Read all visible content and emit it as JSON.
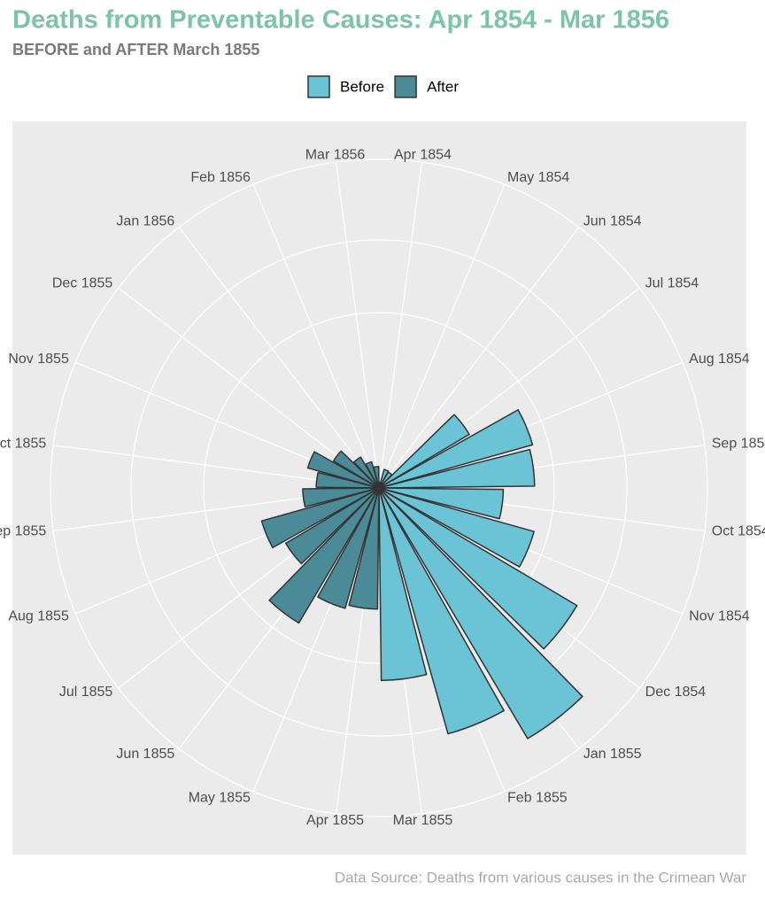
{
  "chart_data": {
    "type": "polar_bar",
    "title": "Deaths from Preventable Causes: Apr 1854 - Mar 1856",
    "subtitle": "BEFORE and AFTER March 1855",
    "caption": "Data Source: Deaths from various causes in the Crimean War",
    "categories": [
      "Apr 1854",
      "May 1854",
      "Jun 1854",
      "Jul 1854",
      "Aug 1854",
      "Sep 1854",
      "Oct 1854",
      "Nov 1854",
      "Dec 1854",
      "Jan 1855",
      "Feb 1855",
      "Mar 1855",
      "Apr 1855",
      "May 1855",
      "Jun 1855",
      "Jul 1855",
      "Aug 1855",
      "Sep 1855",
      "Oct 1855",
      "Nov 1855",
      "Dec 1855",
      "Jan 1856",
      "Feb 1856",
      "Mar 1856"
    ],
    "series": [
      {
        "name": "Before",
        "color": "#6bc3d6",
        "values": [
          1,
          12,
          11,
          359,
          828,
          788,
          503,
          844,
          1725,
          2761,
          2120,
          1205,
          null,
          null,
          null,
          null,
          null,
          null,
          null,
          null,
          null,
          null,
          null,
          null
        ]
      },
      {
        "name": "After",
        "color": "#4a8b97",
        "values": [
          null,
          null,
          null,
          null,
          null,
          null,
          null,
          null,
          null,
          null,
          null,
          null,
          477,
          508,
          802,
          382,
          483,
          189,
          128,
          178,
          91,
          42,
          24,
          15
        ]
      }
    ],
    "ylim": [
      0,
      3510
    ],
    "yticks": [
      1000,
      2000
    ],
    "scale": "sqrt",
    "grid": true,
    "legend": "top"
  }
}
